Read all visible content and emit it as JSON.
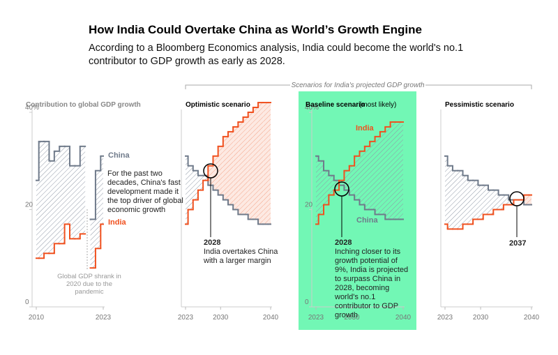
{
  "title": "How India Could Overtake China as World’s Growth Engine",
  "subtitle": "According to a Bloomberg Economics analysis, India could become the world's no.1 contributor to GDP growth as early as 2028.",
  "scenarios_label": "Scenarios for India's projected GDP growth",
  "chart_data": [
    {
      "type": "line",
      "title": "Contribution to global GDP growth",
      "x": [
        2010,
        2011,
        2012,
        2013,
        2014,
        2015,
        2016,
        2017,
        2018,
        2019,
        2020,
        2021,
        2022,
        2023
      ],
      "xlim": [
        2010,
        2023
      ],
      "xticks": [
        2010,
        2023
      ],
      "ylim": [
        0,
        40
      ],
      "yticks": [
        0,
        20,
        {
          "value": 40,
          "label": "40%"
        }
      ],
      "series": [
        {
          "name": "China",
          "color": "#6f7a8a",
          "values": [
            26,
            34,
            34,
            30,
            32,
            33,
            33,
            29,
            29,
            33,
            null,
            18,
            28,
            31
          ]
        },
        {
          "name": "India",
          "color": "#f0501e",
          "values": [
            10,
            10,
            11,
            11,
            13,
            13,
            17,
            14,
            14,
            15,
            null,
            8,
            12,
            17
          ]
        }
      ],
      "annotations": [
        "For the past two decades, China's fast development made it the top driver of global economic growth",
        "Global GDP shrank in 2020 due to the pandemic"
      ]
    },
    {
      "type": "line",
      "title": "Optimistic scenario",
      "x": [
        2023,
        2024,
        2025,
        2026,
        2027,
        2028,
        2029,
        2030,
        2031,
        2032,
        2033,
        2034,
        2035,
        2036,
        2037,
        2038,
        2039,
        2040
      ],
      "xlim": [
        2023,
        2040
      ],
      "xticks": [
        2023,
        2030,
        2040
      ],
      "ylim": [
        0,
        40
      ],
      "series": [
        {
          "color": "#6f7a8a",
          "values": [
            31,
            29,
            28,
            27,
            27,
            25,
            24,
            23,
            22,
            21,
            20,
            19,
            19,
            18,
            18,
            17,
            17,
            17
          ]
        },
        {
          "color": "#f0501e",
          "values": [
            17,
            20,
            22,
            24,
            26,
            29,
            31,
            33,
            35,
            36,
            37,
            38,
            39,
            40,
            41,
            42,
            42,
            42
          ]
        }
      ],
      "annotations": [
        "2028",
        "India overtakes China with a larger margin"
      ]
    },
    {
      "type": "line",
      "title": "Baseline scenario",
      "subtitle": "(most likely)",
      "x": [
        2023,
        2024,
        2025,
        2026,
        2027,
        2028,
        2029,
        2030,
        2031,
        2032,
        2033,
        2034,
        2035,
        2036,
        2037,
        2038,
        2039,
        2040
      ],
      "xlim": [
        2023,
        2040
      ],
      "xticks": [
        2023,
        2030,
        2040
      ],
      "ylim": [
        0,
        40
      ],
      "yticks": [
        0,
        20,
        {
          "value": 40,
          "label": "40%"
        }
      ],
      "series": [
        {
          "name": "China",
          "color": "#6f7a8a",
          "values": [
            31,
            30,
            28,
            27,
            26,
            25,
            24,
            23,
            22,
            21,
            20,
            20,
            19,
            19,
            18,
            18,
            18,
            18
          ]
        },
        {
          "name": "India",
          "color": "#f0501e",
          "values": [
            17,
            19,
            21,
            23,
            24,
            26,
            28,
            29,
            31,
            32,
            33,
            34,
            35,
            36,
            37,
            38,
            38,
            38
          ]
        }
      ],
      "annotations": [
        "2028",
        "Inching closer to its growth potential of 9%, India is projected to surpass China in 2028, becoming world's no.1 contributor to GDP growth"
      ]
    },
    {
      "type": "line",
      "title": "Pessimistic scenario",
      "x": [
        2023,
        2024,
        2025,
        2026,
        2027,
        2028,
        2029,
        2030,
        2031,
        2032,
        2033,
        2034,
        2035,
        2036,
        2037,
        2038,
        2039,
        2040
      ],
      "xlim": [
        2023,
        2040
      ],
      "xticks": [
        2023,
        2030,
        2040
      ],
      "ylim": [
        0,
        40
      ],
      "series": [
        {
          "color": "#6f7a8a",
          "values": [
            31,
            29,
            28,
            28,
            27,
            26,
            26,
            25,
            25,
            24,
            24,
            23,
            23,
            22,
            22,
            22,
            21,
            21
          ]
        },
        {
          "color": "#f0501e",
          "values": [
            17,
            16,
            16,
            16,
            17,
            17,
            18,
            18,
            19,
            19,
            20,
            20,
            21,
            21,
            22,
            22,
            23,
            23
          ]
        }
      ],
      "annotations": [
        "2037"
      ]
    }
  ]
}
